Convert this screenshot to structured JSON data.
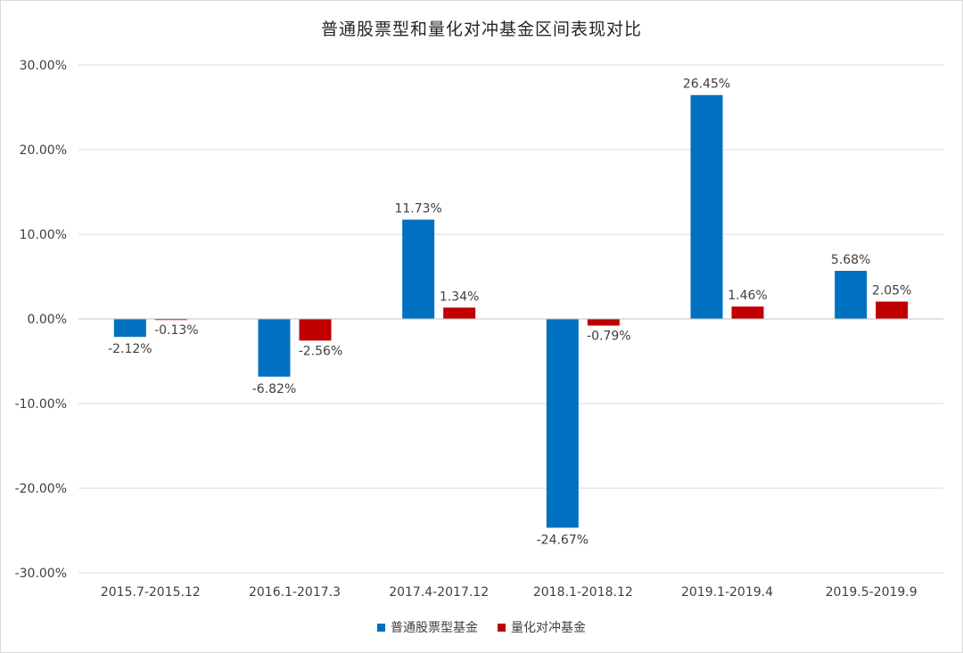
{
  "chart_data": {
    "type": "bar",
    "title": "普通股票型和量化对冲基金区间表现对比",
    "categories": [
      "2015.7-2015.12",
      "2016.1-2017.3",
      "2017.4-2017.12",
      "2018.1-2018.12",
      "2019.1-2019.4",
      "2019.5-2019.9"
    ],
    "series": [
      {
        "name": "普通股票型基金",
        "color": "#0070c0",
        "values": [
          -2.12,
          -6.82,
          11.73,
          -24.67,
          26.45,
          5.68
        ],
        "labels": [
          "-2.12%",
          "-6.82%",
          "11.73%",
          "-24.67%",
          "26.45%",
          "5.68%"
        ]
      },
      {
        "name": "量化对冲基金",
        "color": "#c00000",
        "values": [
          -0.13,
          -2.56,
          1.34,
          -0.79,
          1.46,
          2.05
        ],
        "labels": [
          "-0.13%",
          "-2.56%",
          "1.34%",
          "-0.79%",
          "1.46%",
          "2.05%"
        ]
      }
    ],
    "ylim": [
      -30,
      30
    ],
    "yticks": [
      "30.00%",
      "20.00%",
      "10.00%",
      "0.00%",
      "-10.00%",
      "-20.00%",
      "-30.00%"
    ],
    "ytick_values": [
      30,
      20,
      10,
      0,
      -10,
      -20,
      -30
    ],
    "grid": true,
    "legend_position": "bottom"
  }
}
